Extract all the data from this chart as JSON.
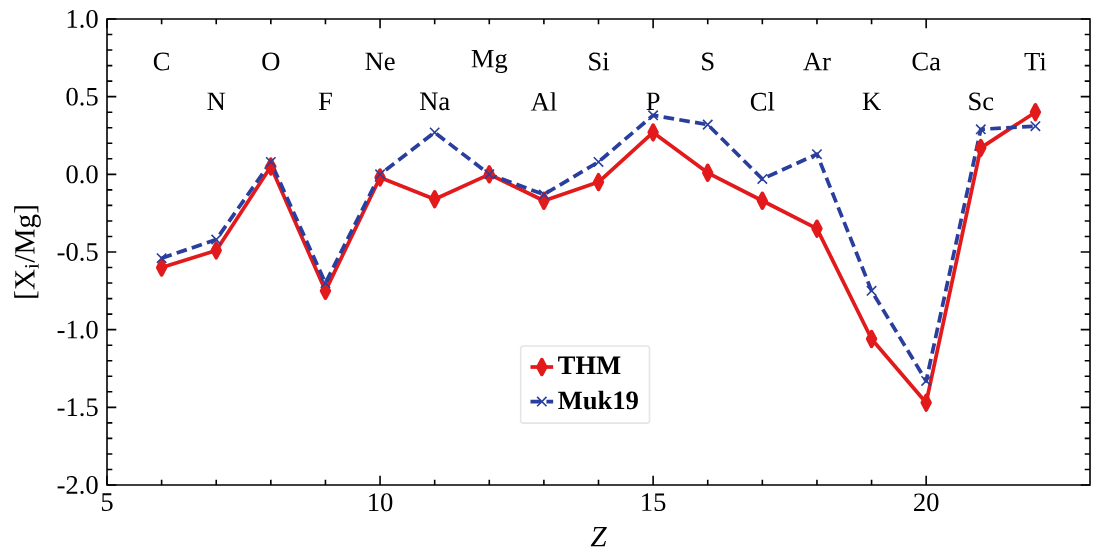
{
  "chart_data": {
    "type": "line",
    "xlabel": "Z",
    "ylabel": "[X$_{i}$/Mg]",
    "x": [
      6,
      7,
      8,
      9,
      10,
      11,
      12,
      13,
      14,
      15,
      16,
      17,
      18,
      19,
      20,
      21,
      22
    ],
    "series": [
      {
        "name": "THM",
        "color": "#e31a1c",
        "marker": "diamond",
        "line_style": "solid",
        "values": [
          -0.6,
          -0.49,
          0.05,
          -0.75,
          -0.02,
          -0.16,
          0.0,
          -0.17,
          -0.05,
          0.27,
          0.01,
          -0.17,
          -0.35,
          -1.06,
          -1.47,
          0.17,
          0.4
        ]
      },
      {
        "name": "Muk19",
        "color": "#2a3f9d",
        "marker": "cross",
        "line_style": "dashed",
        "values": [
          -0.54,
          -0.42,
          0.08,
          -0.7,
          0.0,
          0.27,
          0.0,
          -0.13,
          0.08,
          0.38,
          0.32,
          -0.03,
          0.13,
          -0.75,
          -1.33,
          0.29,
          0.31
        ]
      }
    ],
    "xlim": [
      5,
      23
    ],
    "xticks": [
      5,
      10,
      15,
      20
    ],
    "ylim": [
      -2.0,
      1.0
    ],
    "yticks": [
      {
        "value": -2.0,
        "label": "-2.0"
      },
      {
        "value": -1.5,
        "label": "-1.5"
      },
      {
        "value": -1.0,
        "label": "-1.0"
      },
      {
        "value": -0.5,
        "label": "-0.5"
      },
      {
        "value": 0.0,
        "label": "0.0"
      },
      {
        "value": 0.5,
        "label": "0.5"
      },
      {
        "value": 1.0,
        "label": "1.0"
      }
    ],
    "legend": "bottom",
    "grid": false,
    "annotations": [
      "C",
      "N",
      "O",
      "F",
      "Ne",
      "Na",
      "Mg",
      "Al",
      "Si",
      "P",
      "S",
      "Cl",
      "Ar",
      "K",
      "Ca",
      "Sc",
      "Ti"
    ]
  }
}
